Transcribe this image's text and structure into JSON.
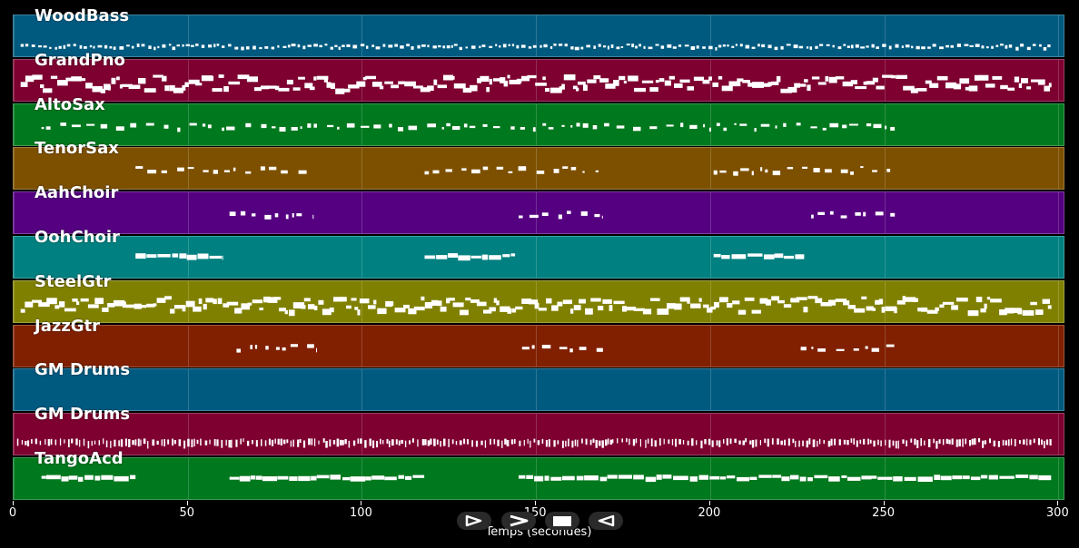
{
  "tracks": [
    {
      "name": "WoodBass",
      "color": "#005a80",
      "pattern": "dense-small",
      "segments": [
        [
          2,
          298
        ]
      ]
    },
    {
      "name": "GrandPno",
      "color": "#7d0030",
      "pattern": "dense-big",
      "segments": [
        [
          2,
          298
        ]
      ]
    },
    {
      "name": "AltoSax",
      "color": "#00781e",
      "pattern": "sparse",
      "segments": [
        [
          8,
          253
        ]
      ]
    },
    {
      "name": "TenorSax",
      "color": "#7d5000",
      "pattern": "sparse",
      "segments": [
        [
          35,
          86
        ],
        [
          118,
          169
        ],
        [
          201,
          253
        ]
      ]
    },
    {
      "name": "AahChoir",
      "color": "#550080",
      "pattern": "sparse",
      "segments": [
        [
          62,
          86
        ],
        [
          145,
          169
        ],
        [
          229,
          253
        ]
      ]
    },
    {
      "name": "OohChoir",
      "color": "#008080",
      "pattern": "blocks",
      "segments": [
        [
          35,
          60
        ],
        [
          118,
          144
        ],
        [
          201,
          227
        ]
      ]
    },
    {
      "name": "SteelGtr",
      "color": "#808000",
      "pattern": "dense-big",
      "segments": [
        [
          2,
          298
        ]
      ]
    },
    {
      "name": "JazzGtr",
      "color": "#802000",
      "pattern": "sparse",
      "segments": [
        [
          64,
          87
        ],
        [
          146,
          170
        ],
        [
          226,
          253
        ]
      ]
    },
    {
      "name": "GM Drums",
      "color": "#005a80",
      "pattern": "none",
      "segments": []
    },
    {
      "name": "GM Drums",
      "color": "#7d0030",
      "pattern": "drums",
      "segments": [
        [
          1,
          298
        ]
      ]
    },
    {
      "name": "TangoAcd",
      "color": "#00781e",
      "pattern": "blocks",
      "segments": [
        [
          8,
          35
        ],
        [
          62,
          118
        ],
        [
          145,
          298
        ]
      ]
    }
  ],
  "axis": {
    "ticks": [
      "0",
      "50",
      "100",
      "150",
      "200",
      "250",
      "300"
    ],
    "tick_values": [
      0,
      50,
      100,
      150,
      200,
      250,
      300
    ],
    "xmax": 302,
    "label": "Temps (secondes)"
  },
  "controls": [
    {
      "name": "play-icon"
    },
    {
      "name": "fast-forward-icon"
    },
    {
      "name": "stop-icon"
    },
    {
      "name": "rewind-icon"
    }
  ]
}
